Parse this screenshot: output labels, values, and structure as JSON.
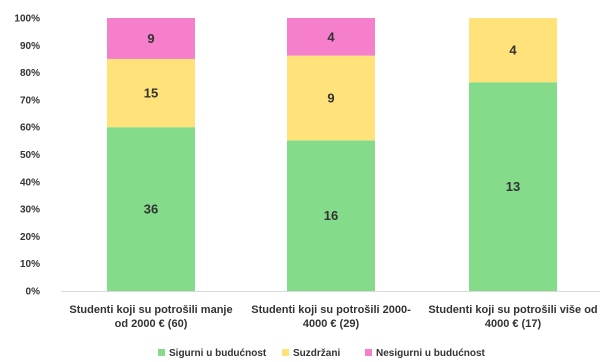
{
  "chart_data": {
    "type": "bar",
    "stacked": true,
    "percent_stacked": true,
    "categories": [
      [
        "Studenti koji su potrošili manje",
        "od 2000 € (60)"
      ],
      [
        "Studenti koji su potrošili 2000-",
        "4000 € (29)"
      ],
      [
        "Studenti koji su potrošili više od",
        "4000 € (17)"
      ]
    ],
    "series": [
      {
        "name": "Sigurni u budućnost",
        "values": [
          36,
          16,
          13
        ],
        "color": "#84DC8A"
      },
      {
        "name": "Suzdržani",
        "values": [
          15,
          9,
          4
        ],
        "color": "#FFE27A"
      },
      {
        "name": "Nesigurni u budućnost",
        "values": [
          9,
          4,
          0
        ],
        "color": "#F57FCB"
      }
    ],
    "y_ticks": [
      "0%",
      "10%",
      "20%",
      "30%",
      "40%",
      "50%",
      "60%",
      "70%",
      "80%",
      "90%",
      "100%"
    ],
    "ylim": [
      0,
      100
    ],
    "grid": false,
    "legend": "bottom-center"
  }
}
